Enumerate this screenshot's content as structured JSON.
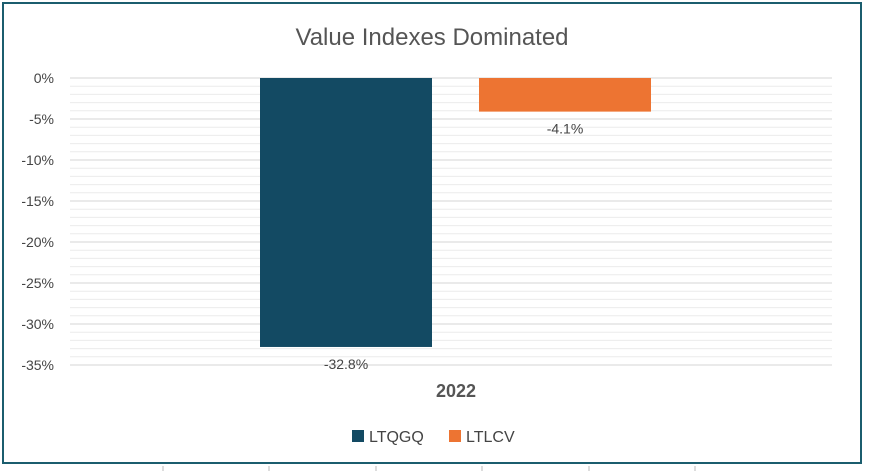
{
  "chart_data": {
    "type": "bar",
    "title": "Value Indexes Dominated",
    "categories": [
      "2022"
    ],
    "series": [
      {
        "name": "LTQGQ",
        "values": [
          -32.8
        ],
        "color": "#134a63"
      },
      {
        "name": "LTLCV",
        "values": [
          -4.1
        ],
        "color": "#ed7432"
      }
    ],
    "data_labels": [
      "-32.8%",
      "-4.1%"
    ],
    "ylim": [
      -35,
      0
    ],
    "yticks": [
      0,
      -5,
      -10,
      -15,
      -20,
      -25,
      -30,
      -35
    ],
    "ytick_labels": [
      "0%",
      "-5%",
      "-10%",
      "-15%",
      "-20%",
      "-25%",
      "-30%",
      "-35%"
    ],
    "grid": true,
    "legend_position": "bottom"
  }
}
